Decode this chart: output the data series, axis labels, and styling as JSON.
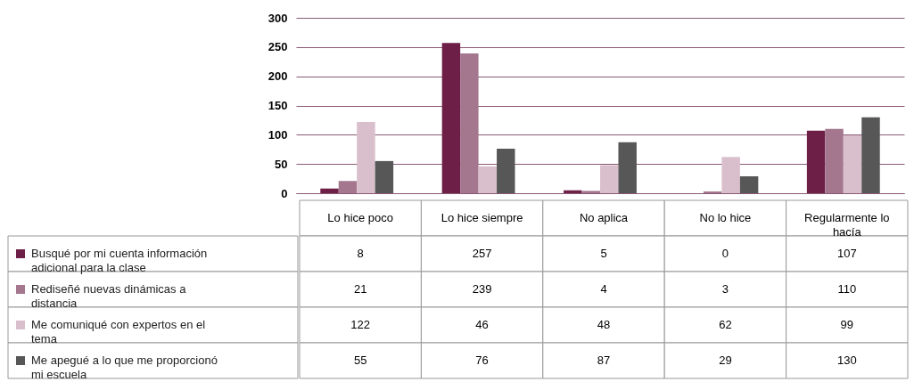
{
  "chart_data": {
    "type": "bar",
    "categories": [
      "Lo hice poco",
      "Lo hice siempre",
      "No aplica",
      "No lo hice",
      "Regularmente lo hacía"
    ],
    "series": [
      {
        "name": "Busqué por mi cuenta información adicional para la clase",
        "color": "#6d1f47",
        "values": [
          8,
          257,
          5,
          0,
          107
        ]
      },
      {
        "name": "Rediseñé nuevas dinámicas a distancia",
        "color": "#a4778f",
        "values": [
          21,
          239,
          4,
          3,
          110
        ]
      },
      {
        "name": "Me comuniqué con expertos en el tema",
        "color": "#d9bfcc",
        "values": [
          122,
          46,
          48,
          62,
          99
        ]
      },
      {
        "name": "Me apegué a lo que me proporcionó mi escuela",
        "color": "#575757",
        "values": [
          55,
          76,
          87,
          29,
          130
        ]
      }
    ],
    "ylim": [
      0,
      300
    ],
    "yticks": [
      0,
      50,
      100,
      150,
      200,
      250,
      300
    ],
    "grid": "y",
    "legend": "bottom left",
    "data_labels": true
  }
}
